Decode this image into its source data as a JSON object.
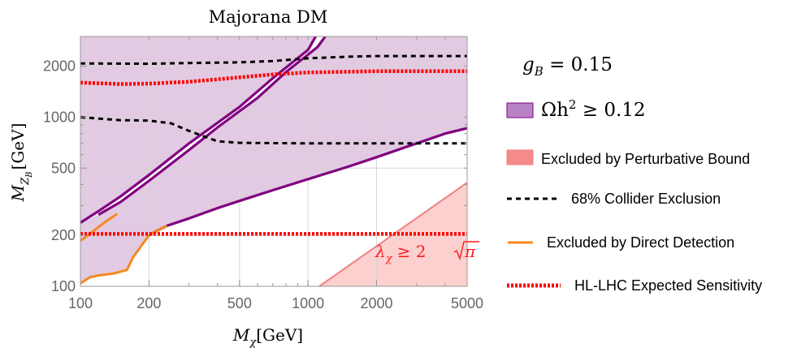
{
  "chart_data": {
    "type": "line",
    "title": "Majorana DM",
    "xlabel": "M_χ [GeV]",
    "xlabel_base": "M",
    "xlabel_sub": "χ",
    "xlabel_unit": "[GeV]",
    "ylabel": "M_{Z_B} [GeV]",
    "ylabel_base": "M",
    "ylabel_sub": "Z",
    "ylabel_subsub": "B",
    "ylabel_unit": "[GeV]",
    "xscale": "log",
    "yscale": "log",
    "xlim": [
      100,
      5000
    ],
    "ylim": [
      100,
      3000
    ],
    "grid": true,
    "x_ticks": [
      {
        "value": 100,
        "label": "100"
      },
      {
        "value": 200,
        "label": "200"
      },
      {
        "value": 500,
        "label": "500"
      },
      {
        "value": 1000,
        "label": "1000"
      },
      {
        "value": 2000,
        "label": "2000"
      },
      {
        "value": 5000,
        "label": "5000"
      }
    ],
    "y_ticks": [
      {
        "value": 100,
        "label": "100"
      },
      {
        "value": 200,
        "label": "200"
      },
      {
        "value": 500,
        "label": "500"
      },
      {
        "value": 1000,
        "label": "1000"
      },
      {
        "value": 2000,
        "label": "2000"
      }
    ],
    "legend_title": "g_B = 0.15",
    "legend_title_base": "g",
    "legend_title_sub": "B",
    "legend_title_rest": " = 0.15",
    "annotation": "λ_χ ≥ 2√π",
    "annotation_lambda": "λ",
    "annotation_sub": "χ",
    "annotation_rest": "≥ 2",
    "annotation_radicand": "π",
    "annotation_pos": [
      2100,
      140
    ],
    "colors": {
      "relic_fill": "#e2cae2",
      "relic_line": "#800080",
      "relic_legend": "#b883c4",
      "perturbative_fill": "#fdd0d0",
      "perturbative_line": "#f08080",
      "perturbative_legend": "#f58a8a",
      "collider": "#000000",
      "direct": "#f5891f",
      "hllhc": "#ff0000",
      "annotation": "#ff1a1a",
      "grid": "#d6d6d6",
      "tick": "#666666"
    },
    "series": [
      {
        "name": "Ωh² ≥ 0.12",
        "legend_label": "Ωh² ≥ 0.12",
        "legend_base": "Ωh",
        "legend_sup": "2",
        "legend_rest": " ≥ 0.12",
        "kind": "region",
        "region_polygons": [
          [
            [
              100,
              104
            ],
            [
              110,
              113
            ],
            [
              120,
              116
            ],
            [
              140,
              119
            ],
            [
              160,
              125
            ],
            [
              170,
              148
            ],
            [
              180,
              165
            ],
            [
              200,
              200
            ],
            [
              220,
              215
            ],
            [
              240,
              228
            ],
            [
              300,
              252
            ],
            [
              400,
              290
            ],
            [
              500,
              320
            ],
            [
              700,
              370
            ],
            [
              1000,
              430
            ],
            [
              1500,
              510
            ],
            [
              2000,
              580
            ],
            [
              3000,
              700
            ],
            [
              4000,
              800
            ],
            [
              5000,
              860
            ],
            [
              5000,
              3000
            ],
            [
              100,
              3000
            ]
          ],
          [
            [
              100,
              238
            ],
            [
              120,
              278
            ],
            [
              150,
              340
            ],
            [
              200,
              455
            ],
            [
              300,
              700
            ],
            [
              500,
              1150
            ],
            [
              700,
              1700
            ],
            [
              1000,
              2500
            ],
            [
              1080,
              3000
            ],
            [
              1190,
              3000
            ],
            [
              1100,
              2600
            ],
            [
              800,
              1850
            ],
            [
              600,
              1300
            ],
            [
              400,
              870
            ],
            [
              300,
              640
            ],
            [
              200,
              420
            ],
            [
              150,
              315
            ],
            [
              120,
              265
            ],
            [
              100,
              238
            ]
          ]
        ],
        "boundary_curves": [
          [
            [
              100,
              238
            ],
            [
              120,
              278
            ],
            [
              150,
              340
            ],
            [
              200,
              455
            ],
            [
              300,
              700
            ],
            [
              500,
              1150
            ],
            [
              700,
              1700
            ],
            [
              1000,
              2500
            ],
            [
              1080,
              3000
            ]
          ],
          [
            [
              120,
              265
            ],
            [
              150,
              315
            ],
            [
              200,
              420
            ],
            [
              300,
              640
            ],
            [
              400,
              870
            ],
            [
              600,
              1300
            ],
            [
              800,
              1850
            ],
            [
              1100,
              2600
            ],
            [
              1190,
              3000
            ]
          ],
          [
            [
              200,
              200
            ],
            [
              220,
              215
            ],
            [
              240,
              228
            ],
            [
              300,
              252
            ],
            [
              400,
              290
            ],
            [
              500,
              320
            ],
            [
              700,
              370
            ],
            [
              1000,
              430
            ],
            [
              1500,
              510
            ],
            [
              2000,
              580
            ],
            [
              3000,
              700
            ],
            [
              4000,
              800
            ],
            [
              5000,
              860
            ]
          ]
        ]
      },
      {
        "name": "Excluded by Perturbative Bound",
        "legend_label": "Excluded by Perturbative Bound",
        "kind": "region",
        "region_polygons": [
          [
            [
              1120,
              100
            ],
            [
              5000,
              410
            ],
            [
              5000,
              100
            ]
          ]
        ],
        "boundary_curves": [
          [
            [
              1120,
              100
            ],
            [
              5000,
              410
            ]
          ]
        ]
      },
      {
        "name": "68% Collider Exclusion",
        "legend_label": "68% Collider Exclusion",
        "kind": "dashed",
        "curves": [
          [
            [
              100,
              2080
            ],
            [
              200,
              2070
            ],
            [
              300,
              2090
            ],
            [
              500,
              2110
            ],
            [
              700,
              2150
            ],
            [
              1000,
              2230
            ],
            [
              1500,
              2280
            ],
            [
              2000,
              2300
            ],
            [
              5000,
              2300
            ]
          ],
          [
            [
              100,
              1000
            ],
            [
              150,
              960
            ],
            [
              200,
              955
            ],
            [
              250,
              920
            ],
            [
              300,
              830
            ],
            [
              400,
              720
            ],
            [
              500,
              705
            ],
            [
              1000,
              700
            ],
            [
              2000,
              700
            ],
            [
              5000,
              700
            ]
          ]
        ]
      },
      {
        "name": "Excluded by Direct Detection",
        "legend_label": "Excluded by Direct Detection",
        "kind": "solid",
        "curves": [
          [
            [
              100,
              104
            ],
            [
              110,
              113
            ],
            [
              120,
              116
            ],
            [
              140,
              119
            ],
            [
              160,
              125
            ],
            [
              170,
              148
            ],
            [
              180,
              165
            ],
            [
              200,
              200
            ],
            [
              220,
              215
            ],
            [
              240,
              228
            ]
          ],
          [
            [
              100,
              186
            ],
            [
              110,
              204
            ],
            [
              120,
              224
            ],
            [
              130,
              243
            ],
            [
              145,
              268
            ]
          ]
        ]
      },
      {
        "name": "HL-LHC Expected Sensitivity",
        "legend_label": "HL-LHC Expected Sensitivity",
        "kind": "dotted",
        "curves": [
          [
            [
              100,
              1600
            ],
            [
              150,
              1570
            ],
            [
              200,
              1580
            ],
            [
              300,
              1620
            ],
            [
              500,
              1720
            ],
            [
              700,
              1790
            ],
            [
              1000,
              1840
            ],
            [
              2000,
              1870
            ],
            [
              5000,
              1870
            ]
          ],
          [
            [
              100,
              204
            ],
            [
              5000,
              204
            ]
          ]
        ]
      }
    ]
  }
}
